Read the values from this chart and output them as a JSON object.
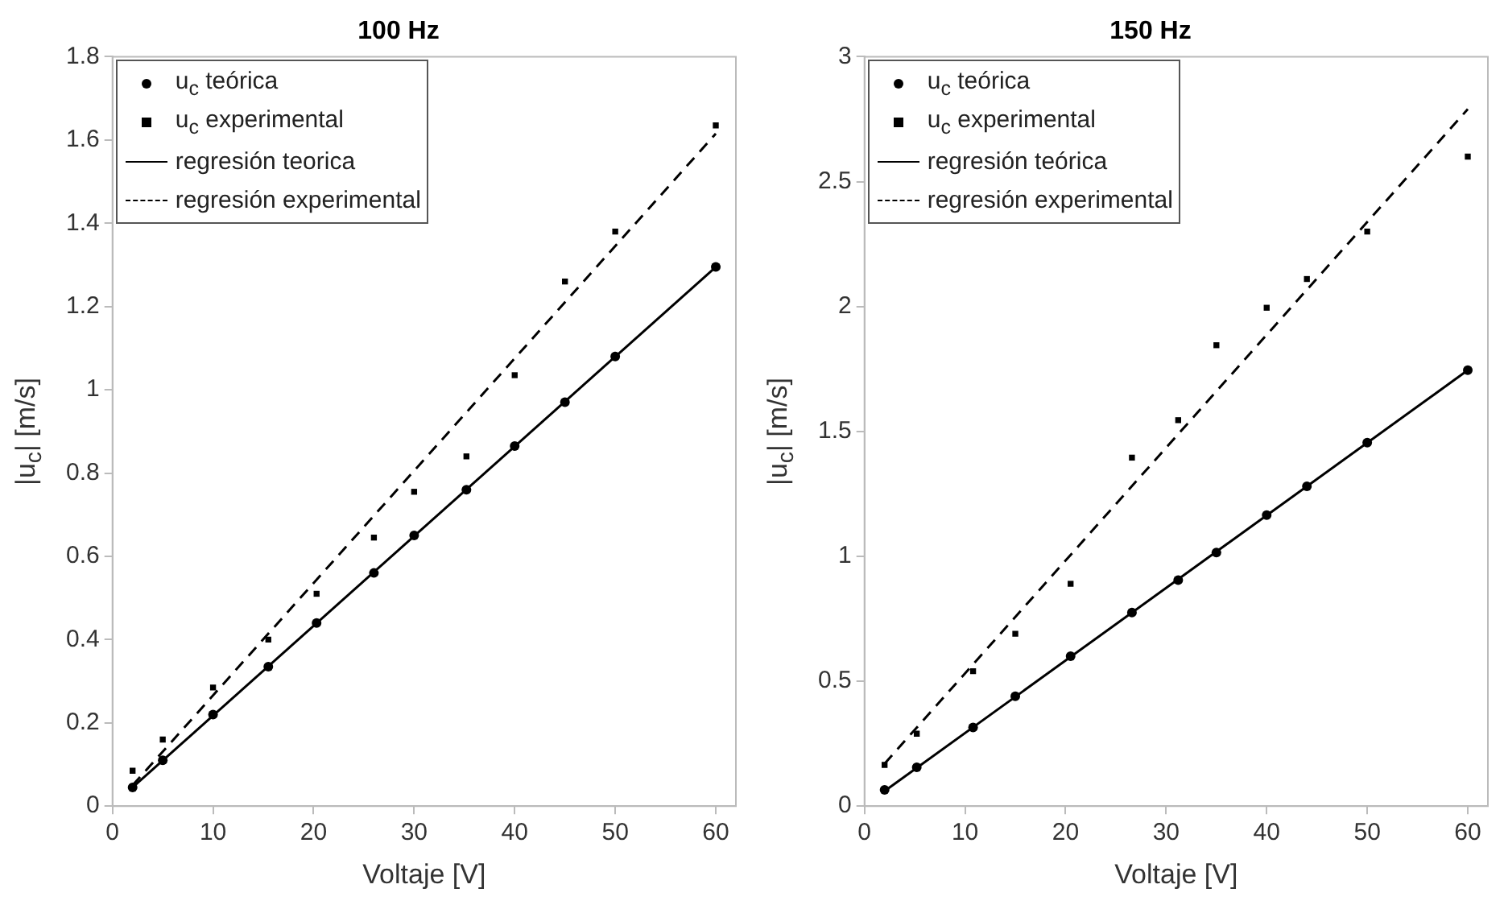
{
  "chart_data": [
    {
      "type": "scatter",
      "title": "100 Hz",
      "xlabel": "Voltaje [V]",
      "ylabel": "|u$_{c}$| [m/s]",
      "xlim": [
        0,
        62
      ],
      "xticks": [
        0,
        10,
        20,
        30,
        40,
        50,
        60
      ],
      "ylim": [
        0,
        1.8
      ],
      "yticks": [
        0,
        0.2,
        0.4,
        0.6,
        0.8,
        1,
        1.2,
        1.4,
        1.6,
        1.8
      ],
      "grid": false,
      "legend": "top left",
      "series": [
        {
          "name": "u$_{c}$ teórica",
          "marker": "circle",
          "color": "#000000",
          "x": [
            2,
            5,
            10,
            15.5,
            20.3,
            26,
            30,
            35.2,
            40,
            45,
            50,
            60
          ],
          "values": [
            0.045,
            0.11,
            0.22,
            0.335,
            0.44,
            0.56,
            0.65,
            0.76,
            0.865,
            0.97,
            1.08,
            1.295
          ]
        },
        {
          "name": "u$_{c}$ experimental",
          "marker": "square",
          "color": "#000000",
          "x": [
            2,
            5,
            10,
            15.5,
            20.3,
            26,
            30,
            35.2,
            40,
            45,
            50,
            60
          ],
          "values": [
            0.085,
            0.16,
            0.285,
            0.4,
            0.51,
            0.645,
            0.755,
            0.84,
            1.035,
            1.26,
            1.38,
            1.635
          ]
        },
        {
          "name": "regresión teorica",
          "type": "line",
          "line_style": "solid",
          "color": "#000000",
          "x": [
            2,
            60
          ],
          "values": [
            0.045,
            1.295
          ]
        },
        {
          "name": "regresión experimental",
          "type": "line",
          "line_style": "dashed",
          "color": "#000000",
          "x": [
            2,
            60
          ],
          "values": [
            0.05,
            1.615
          ]
        }
      ]
    },
    {
      "type": "scatter",
      "title": "150 Hz",
      "xlabel": "Voltaje [V]",
      "ylabel": "|u$_{c}$| [m/s]",
      "xlim": [
        0,
        62
      ],
      "xticks": [
        0,
        10,
        20,
        30,
        40,
        50,
        60
      ],
      "ylim": [
        0,
        3
      ],
      "yticks": [
        0,
        0.5,
        1,
        1.5,
        2,
        2.5,
        3
      ],
      "grid": false,
      "legend": "top left",
      "series": [
        {
          "name": "u$_{c}$ teórica",
          "marker": "circle",
          "color": "#000000",
          "x": [
            2,
            5.2,
            10.8,
            15,
            20.5,
            26.6,
            31.2,
            35,
            40,
            44,
            50,
            60
          ],
          "values": [
            0.065,
            0.155,
            0.315,
            0.44,
            0.6,
            0.775,
            0.905,
            1.015,
            1.165,
            1.28,
            1.455,
            1.745
          ]
        },
        {
          "name": "u$_{c}$ experimental",
          "marker": "square",
          "color": "#000000",
          "x": [
            2,
            5.2,
            10.8,
            15,
            20.5,
            26.6,
            31.2,
            35,
            40,
            44,
            50,
            60
          ],
          "values": [
            0.165,
            0.29,
            0.54,
            0.69,
            0.89,
            1.395,
            1.545,
            1.845,
            1.995,
            2.11,
            2.3,
            2.6
          ]
        },
        {
          "name": "regresión teórica",
          "type": "line",
          "line_style": "solid",
          "color": "#000000",
          "x": [
            2,
            60
          ],
          "values": [
            0.06,
            1.745
          ]
        },
        {
          "name": "regresión experimental",
          "type": "line",
          "line_style": "dashed",
          "color": "#000000",
          "x": [
            2,
            60
          ],
          "values": [
            0.17,
            2.79
          ]
        }
      ]
    }
  ]
}
